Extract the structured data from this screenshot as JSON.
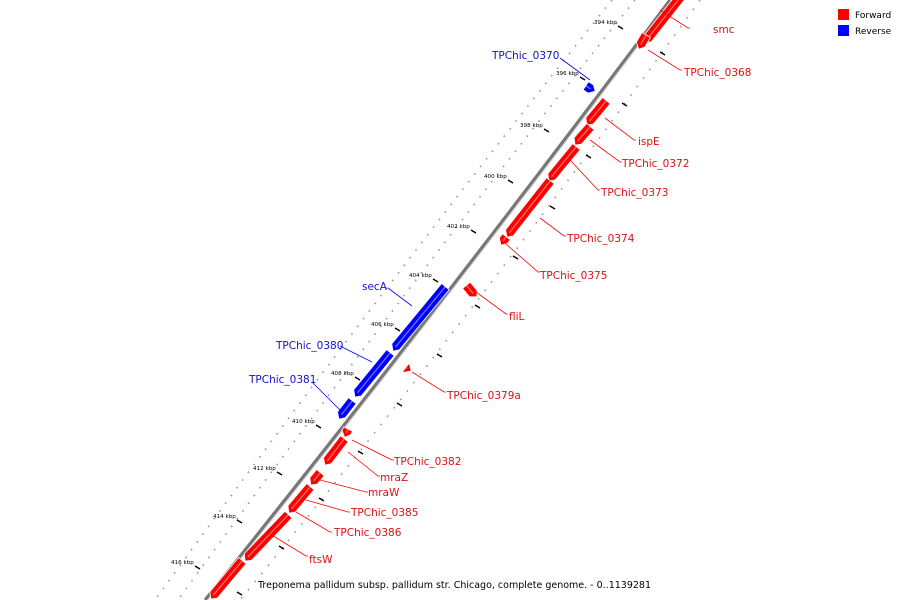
{
  "title": "Treponema pallidum subsp. pallidum str. Chicago, complete genome. - 0..1139281",
  "legend": [
    {
      "label": "Forward",
      "color": "#ff0000"
    },
    {
      "label": "Reverse",
      "color": "#0000ff"
    }
  ],
  "colors": {
    "forward": "#ff0000",
    "reverse": "#0000ff",
    "backbone": "#777777"
  },
  "ticks": [
    "394 kbp",
    "396 kbp",
    "398 kbp",
    "400 kbp",
    "402 kbp",
    "404 kbp",
    "406 kbp",
    "408 kbp",
    "410 kbp",
    "412 kbp",
    "414 kbp",
    "416 kbp"
  ],
  "genes": [
    {
      "name": "smc",
      "strand": "forward"
    },
    {
      "name": "TPChic_0368",
      "strand": "forward"
    },
    {
      "name": "TPChic_0370",
      "strand": "reverse"
    },
    {
      "name": "ispE",
      "strand": "forward"
    },
    {
      "name": "TPChic_0372",
      "strand": "forward"
    },
    {
      "name": "TPChic_0373",
      "strand": "forward"
    },
    {
      "name": "TPChic_0374",
      "strand": "forward"
    },
    {
      "name": "TPChic_0375",
      "strand": "forward"
    },
    {
      "name": "fliL",
      "strand": "forward"
    },
    {
      "name": "secA",
      "strand": "reverse"
    },
    {
      "name": "TPChic_0380",
      "strand": "reverse"
    },
    {
      "name": "TPChic_0379a",
      "strand": "forward"
    },
    {
      "name": "TPChic_0381",
      "strand": "reverse"
    },
    {
      "name": "TPChic_0382",
      "strand": "forward"
    },
    {
      "name": "mraZ",
      "strand": "forward"
    },
    {
      "name": "mraW",
      "strand": "forward"
    },
    {
      "name": "TPChic_0385",
      "strand": "forward"
    },
    {
      "name": "TPChic_0386",
      "strand": "forward"
    },
    {
      "name": "ftsW",
      "strand": "forward"
    }
  ]
}
